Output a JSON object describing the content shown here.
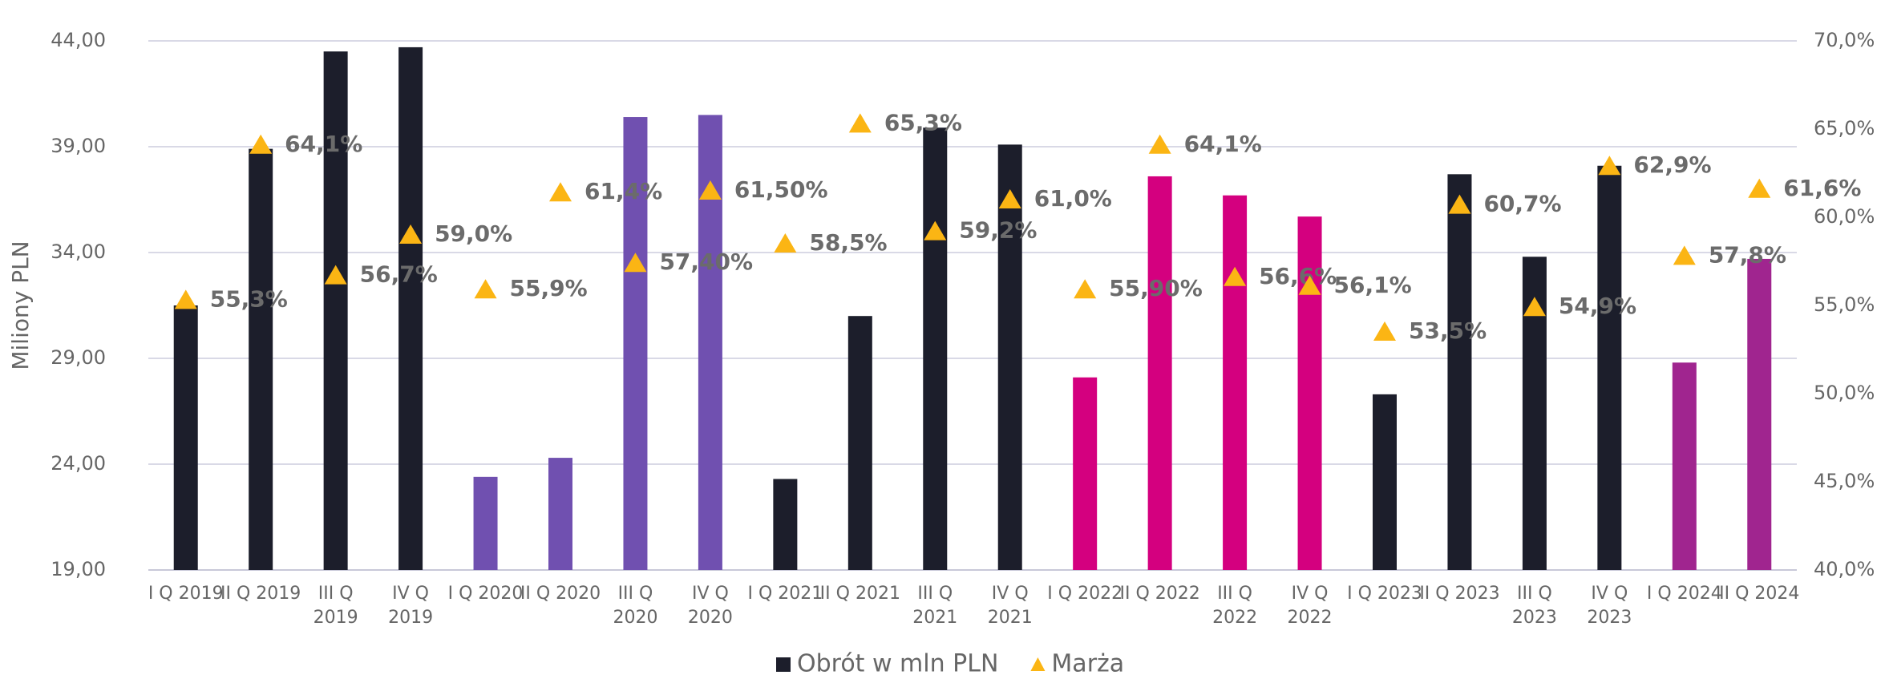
{
  "chart_data": {
    "type": "bar",
    "y_label": "Miliony PLN",
    "categories": [
      "I Q 2019",
      "II Q 2019",
      "III Q 2019",
      "IV Q 2019",
      "I Q 2020",
      "II Q 2020",
      "III Q 2020",
      "IV Q 2020",
      "I Q 2021",
      "II Q 2021",
      "III Q 2021",
      "IV Q 2021",
      "I Q 2022",
      "II Q 2022",
      "III Q 2022",
      "IV Q 2022",
      "I Q 2023",
      "II Q 2023",
      "III Q 2023",
      "IV Q 2023",
      "I Q 2024",
      "II Q 2024"
    ],
    "series": [
      {
        "name": "Obrót w mln PLN",
        "type": "bar",
        "color": "#1c1e2b",
        "colors": [
          "#1c1e2b",
          "#1c1e2b",
          "#1c1e2b",
          "#1c1e2b",
          "#7050b0",
          "#7050b0",
          "#7050b0",
          "#7050b0",
          "#1c1e2b",
          "#1c1e2b",
          "#1c1e2b",
          "#1c1e2b",
          "#d4007f",
          "#d4007f",
          "#d4007f",
          "#d4007f",
          "#1c1e2b",
          "#1c1e2b",
          "#1c1e2b",
          "#1c1e2b",
          "#a0258f",
          "#a0258f"
        ],
        "values": [
          31.5,
          38.9,
          43.5,
          43.7,
          23.4,
          24.3,
          40.4,
          40.5,
          23.3,
          31.0,
          39.9,
          39.1,
          28.1,
          37.6,
          36.7,
          35.7,
          27.3,
          37.7,
          33.8,
          38.1,
          28.8,
          33.7
        ]
      },
      {
        "name": "Marża",
        "type": "scatter",
        "marker": "triangle",
        "color": "#fbb514",
        "axis": "y2",
        "values": [
          55.3,
          64.1,
          56.7,
          59.0,
          55.9,
          61.4,
          57.4,
          61.5,
          58.5,
          65.3,
          59.2,
          61.0,
          55.9,
          64.1,
          56.6,
          56.1,
          53.5,
          60.7,
          54.9,
          62.9,
          57.8,
          61.6
        ],
        "value_labels": [
          "55,3%",
          "64,1%",
          "56,7%",
          "59,0%",
          "55,9%",
          "61,4%",
          "57,40%",
          "61,50%",
          "58,5%",
          "65,3%",
          "59,2%",
          "61,0%",
          "55,90%",
          "64,1%",
          "56,6%",
          "56,1%",
          "53,5%",
          "60,7%",
          "54,9%",
          "62,9%",
          "57,8%",
          "61,6%"
        ]
      }
    ],
    "ylim": [
      19,
      44
    ],
    "yticks": [
      {
        "value": 19,
        "label": "19,00"
      },
      {
        "value": 24,
        "label": "24,00"
      },
      {
        "value": 29,
        "label": "29,00"
      },
      {
        "value": 34,
        "label": "34,00"
      },
      {
        "value": 39,
        "label": "39,00"
      },
      {
        "value": 44,
        "label": "44,00"
      }
    ],
    "y2lim": [
      40,
      70
    ],
    "y2ticks": [
      {
        "value": 40,
        "label": "40,0%"
      },
      {
        "value": 45,
        "label": "45,0%"
      },
      {
        "value": 50,
        "label": "50,0%"
      },
      {
        "value": 55,
        "label": "55,0%"
      },
      {
        "value": 60,
        "label": "60,0%"
      },
      {
        "value": 65,
        "label": "65,0%"
      },
      {
        "value": 70,
        "label": "70,0%"
      }
    ],
    "grid": true,
    "legend": "bottom"
  }
}
